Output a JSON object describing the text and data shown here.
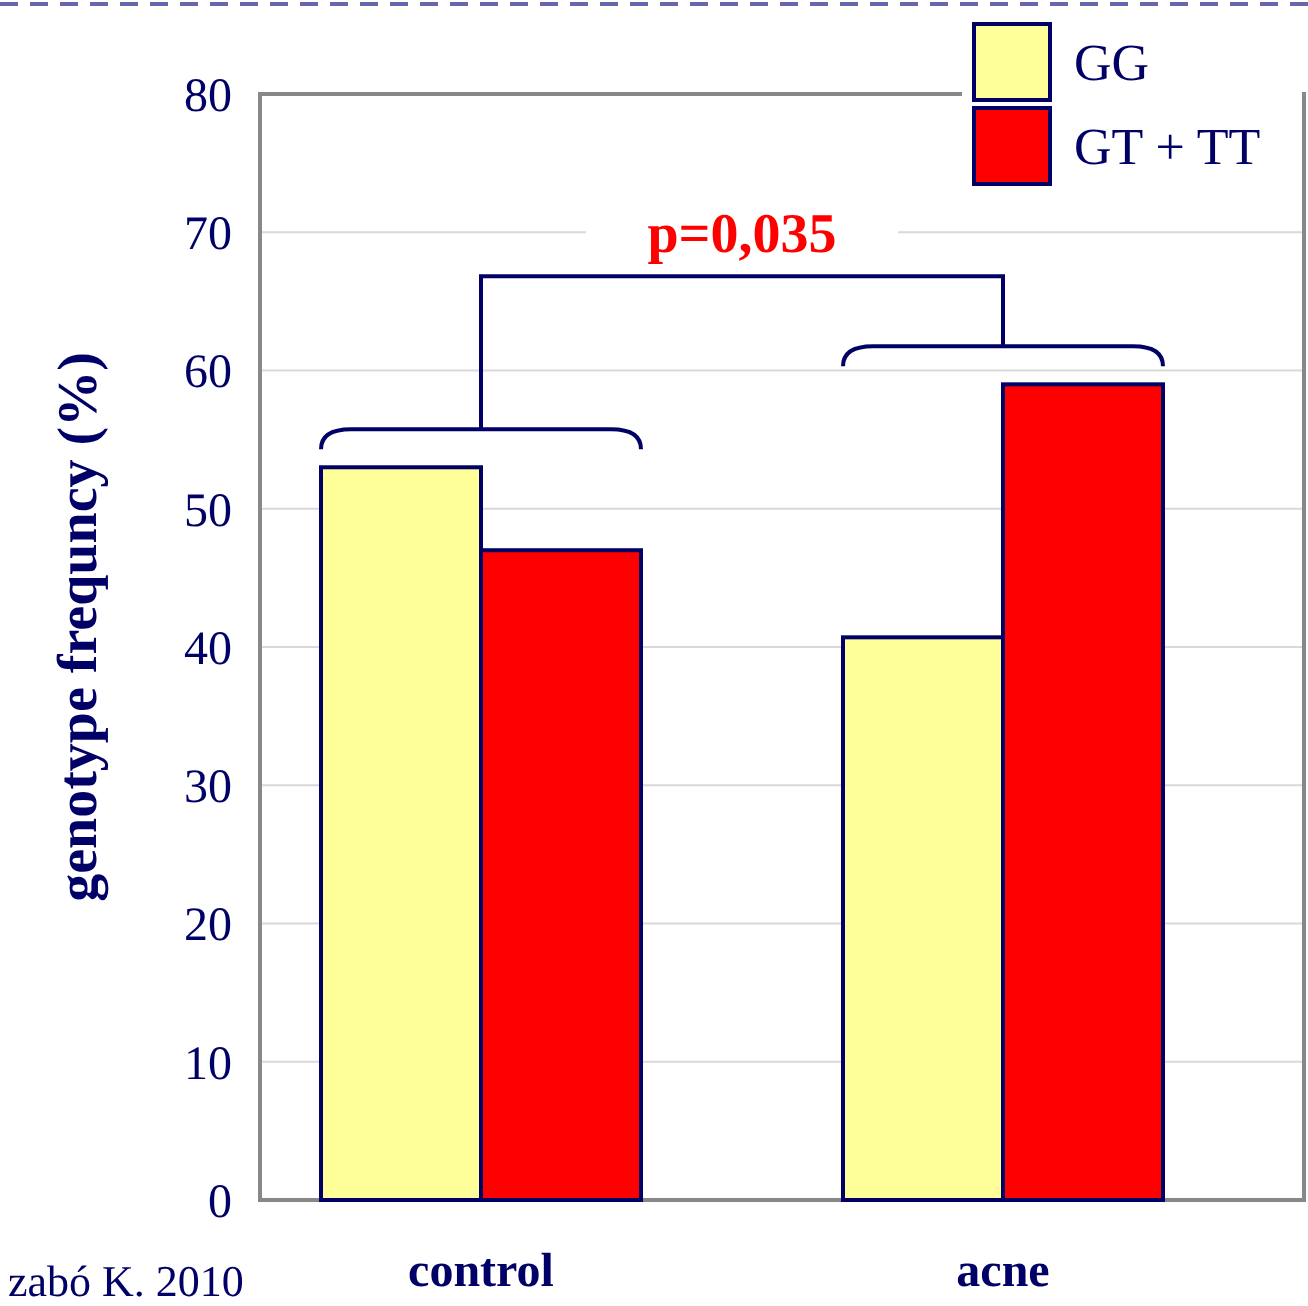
{
  "chart_data": {
    "type": "bar",
    "ylabel": "genotype frequncy (%)",
    "categories": [
      "control",
      "acne"
    ],
    "series": [
      {
        "name": "GG",
        "color": "#ffff99",
        "values": [
          53,
          40.7
        ]
      },
      {
        "name": "GT + TT",
        "color": "#ff0000",
        "values": [
          47,
          59
        ]
      }
    ],
    "ylim": [
      0,
      80
    ],
    "yticks": [
      0,
      10,
      20,
      30,
      40,
      50,
      60,
      70,
      80
    ],
    "grid": "y",
    "legend": "top right",
    "annotations": [
      "p=0,035",
      "zabó K. 2010"
    ]
  }
}
